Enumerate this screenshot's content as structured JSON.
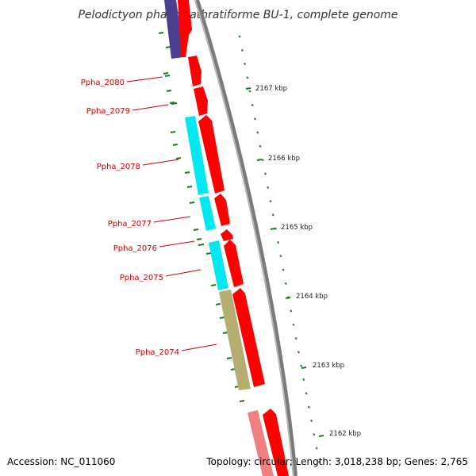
{
  "title": "Pelodictyon phaeoclathratiforme BU-1, complete genome",
  "accession": "Accession: NC_011060",
  "topology": "Topology: circular; Length: 3,018,238 bp; Genes: 2,765",
  "kbp_labels": [
    "2167 kbp",
    "2166 kbp",
    "2165 kbp",
    "2164 kbp",
    "2163 kbp",
    "2162 kbp"
  ],
  "gene_labels": [
    "Ppha_2080",
    "Ppha_2079",
    "Ppha_2078",
    "Ppha_2077",
    "Ppha_2076",
    "Ppha_2075",
    "Ppha_2074"
  ],
  "colors": {
    "label": "#cc0000",
    "forward_gene": "#ff0000",
    "forward_gene_pale": "#f08080",
    "reverse_navy": "#4a3f8f",
    "reverse_cyan": "#00ffff",
    "reverse_olive": "#b5ae70",
    "backbone": "#888888",
    "tick": "#1a7a1a"
  }
}
